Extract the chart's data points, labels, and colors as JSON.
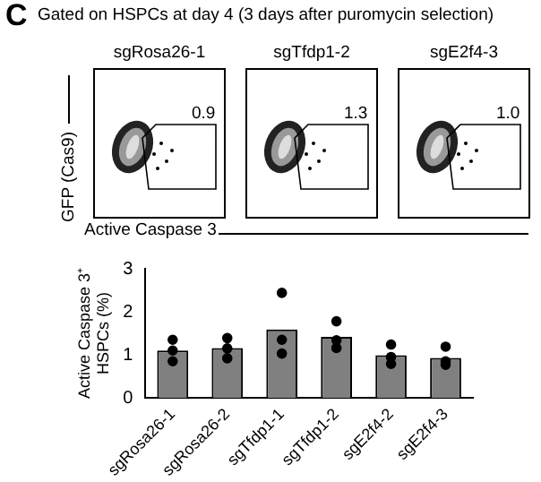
{
  "chart_data": [
    {
      "type": "other",
      "title": "Gated on HSPCs at day 4 (3 days after puromycin selection)",
      "annotations": [
        "C"
      ],
      "categories": [
        "sgRosa26-1",
        "sgTfdp1-2",
        "sgE2f4-3"
      ],
      "values": [
        0.9,
        1.3,
        1.0
      ],
      "value_labels": [
        "0.9",
        "1.3",
        "1.0"
      ],
      "xlabel": "Active Caspase 3",
      "ylabel": "GFP (Cas9)"
    },
    {
      "type": "bar",
      "categories": [
        "sgRosa26-1",
        "sgRosa26-2",
        "sgTfdp1-1",
        "sgTfdp1-2",
        "sgE2f4-2",
        "sgE2f4-3"
      ],
      "ylabel": "Active Caspase 3⁺ HSPCs (%)",
      "ylim": [
        0,
        3
      ],
      "yticks": [
        0,
        1,
        2,
        3
      ],
      "grid": false,
      "legend": false,
      "series": [
        {
          "type": "bar",
          "color": "#808080",
          "values": [
            1.1,
            1.16,
            1.59,
            1.42,
            0.99,
            0.93
          ]
        },
        {
          "type": "scatter",
          "color": "#000000",
          "marker": "circle",
          "x": [
            "sgRosa26-1",
            "sgRosa26-1",
            "sgRosa26-1",
            "sgRosa26-2",
            "sgRosa26-2",
            "sgRosa26-2",
            "sgTfdp1-1",
            "sgTfdp1-1",
            "sgTfdp1-1",
            "sgTfdp1-2",
            "sgTfdp1-2",
            "sgTfdp1-2",
            "sgE2f4-2",
            "sgE2f4-2",
            "sgE2f4-2",
            "sgE2f4-3",
            "sgE2f4-3",
            "sgE2f4-3"
          ],
          "values": [
            1.35,
            1.1,
            0.85,
            1.39,
            1.15,
            0.92,
            2.44,
            1.35,
            1.03,
            1.78,
            1.16,
            1.34,
            1.24,
            0.79,
            0.95,
            1.19,
            0.77,
            0.85
          ]
        }
      ]
    }
  ]
}
